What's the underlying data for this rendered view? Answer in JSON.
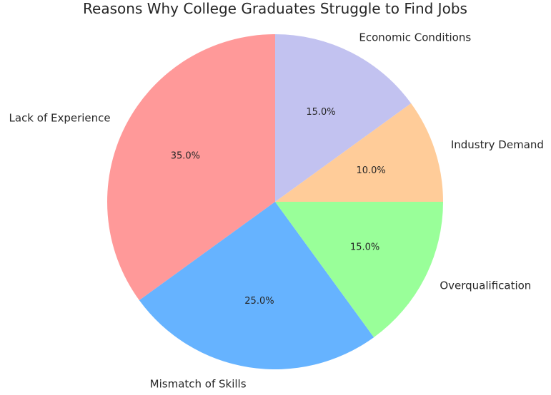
{
  "chart_data": {
    "type": "pie",
    "title": "Reasons Why College Graduates Struggle to Find Jobs",
    "start_angle_deg": 90,
    "direction": "counterclockwise",
    "slices": [
      {
        "label": "Lack of Experience",
        "value": 35.0,
        "pct_label": "35.0%",
        "color": "#ff9999"
      },
      {
        "label": "Mismatch of Skills",
        "value": 25.0,
        "pct_label": "25.0%",
        "color": "#66b3ff"
      },
      {
        "label": "Overqualification",
        "value": 15.0,
        "pct_label": "15.0%",
        "color": "#99ff99"
      },
      {
        "label": "Industry Demand",
        "value": 10.0,
        "pct_label": "10.0%",
        "color": "#ffcc99"
      },
      {
        "label": "Economic Conditions",
        "value": 15.0,
        "pct_label": "15.0%",
        "color": "#c2c2f0"
      }
    ]
  }
}
